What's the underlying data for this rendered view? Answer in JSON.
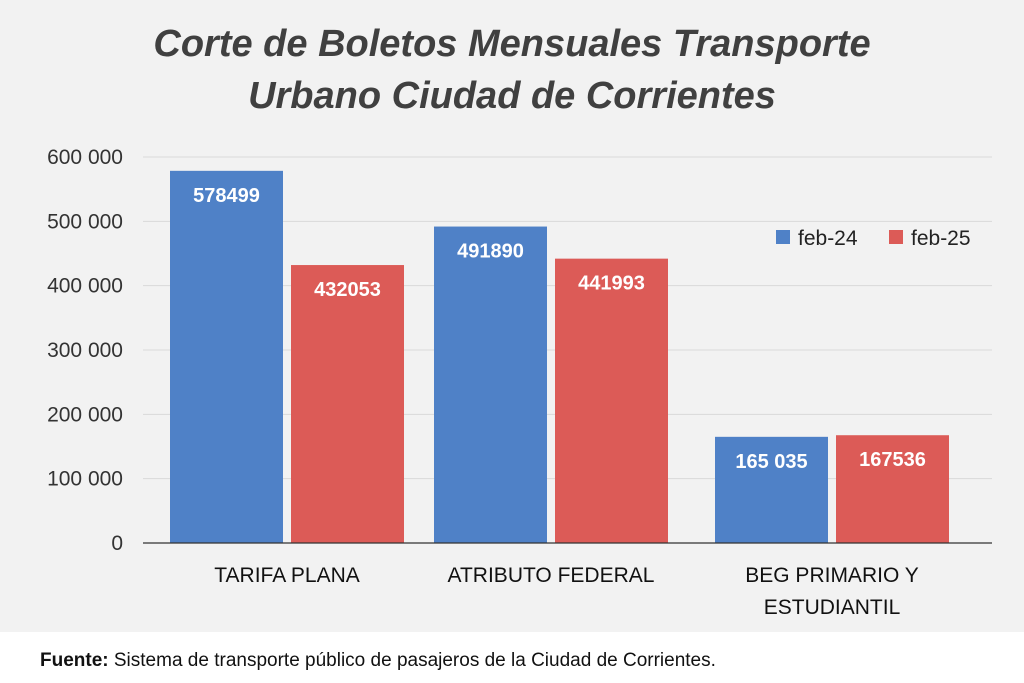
{
  "chart_data": {
    "type": "bar",
    "title": [
      "Corte de Boletos Mensuales Transporte",
      "Urbano Ciudad de Corrientes"
    ],
    "categories": [
      [
        "TARIFA PLANA"
      ],
      [
        "ATRIBUTO FEDERAL"
      ],
      [
        "BEG PRIMARIO Y",
        "ESTUDIANTIL"
      ]
    ],
    "series": [
      {
        "name": "feb-24",
        "color": "#4f81c7",
        "values": [
          578499,
          491890,
          165035
        ],
        "labels": [
          "578499",
          "491890",
          "165 035"
        ]
      },
      {
        "name": "feb-25",
        "color": "#dc5b57",
        "values": [
          432053,
          441993,
          167536
        ],
        "labels": [
          "432053",
          "441993",
          "167536"
        ]
      }
    ],
    "ylim": [
      0,
      600000
    ],
    "yticks": [
      0,
      100000,
      200000,
      300000,
      400000,
      500000,
      600000
    ],
    "ytick_labels": [
      "0",
      "100 000",
      "200 000",
      "300 000",
      "400 000",
      "500 000",
      "600 000"
    ],
    "grid": true,
    "legend_position": "top-right"
  },
  "footer": {
    "label": "Fuente:",
    "text": " Sistema de transporte público de pasajeros de la Ciudad de Corrientes."
  }
}
